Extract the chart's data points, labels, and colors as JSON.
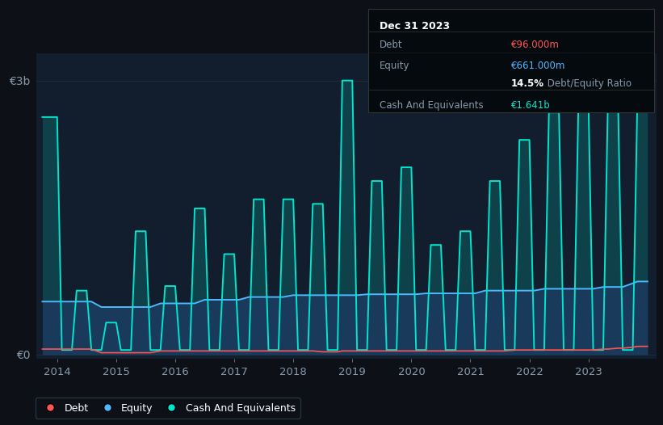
{
  "background_color": "#0d1117",
  "plot_bg_color": "#121d2e",
  "ylabel_3b": "€3b",
  "ylabel_0": "€0",
  "x_labels": [
    "2014",
    "2015",
    "2016",
    "2017",
    "2018",
    "2019",
    "2020",
    "2021",
    "2022",
    "2023"
  ],
  "legend": [
    {
      "label": "Debt",
      "color": "#ff5555"
    },
    {
      "label": "Equity",
      "color": "#4db8ff"
    },
    {
      "label": "Cash And Equivalents",
      "color": "#00e5cc"
    }
  ],
  "debt_color": "#ff5555",
  "equity_color": "#4db8ff",
  "cash_color": "#00e5cc",
  "cash_fill_color": "#00e5cc",
  "equity_fill_color": "#1a3a5c",
  "grid_color": "#1e2d3d",
  "axis_label_color": "#8899aa",
  "tooltip_bg": "#050a0f",
  "tooltip_border": "#333333",
  "debt_color_tooltip": "#ff5555",
  "equity_color_tooltip": "#4db8ff",
  "cash_color_tooltip": "#00e5cc",
  "years": [
    2013.75,
    2014.0,
    2014.08,
    2014.25,
    2014.33,
    2014.5,
    2014.58,
    2014.75,
    2014.83,
    2015.0,
    2015.08,
    2015.25,
    2015.33,
    2015.5,
    2015.58,
    2015.75,
    2015.83,
    2016.0,
    2016.08,
    2016.25,
    2016.33,
    2016.5,
    2016.58,
    2016.75,
    2016.83,
    2017.0,
    2017.08,
    2017.25,
    2017.33,
    2017.5,
    2017.58,
    2017.75,
    2017.83,
    2018.0,
    2018.08,
    2018.25,
    2018.33,
    2018.5,
    2018.58,
    2018.75,
    2018.83,
    2019.0,
    2019.08,
    2019.25,
    2019.33,
    2019.5,
    2019.58,
    2019.75,
    2019.83,
    2020.0,
    2020.08,
    2020.25,
    2020.33,
    2020.5,
    2020.58,
    2020.75,
    2020.83,
    2021.0,
    2021.08,
    2021.25,
    2021.33,
    2021.5,
    2021.58,
    2021.75,
    2021.83,
    2022.0,
    2022.08,
    2022.25,
    2022.33,
    2022.5,
    2022.58,
    2022.75,
    2022.83,
    2023.0,
    2023.08,
    2023.25,
    2023.33,
    2023.5,
    2023.58,
    2023.75,
    2023.83,
    2024.0
  ],
  "cash": [
    2.6,
    2.6,
    0.05,
    0.05,
    0.7,
    0.7,
    0.05,
    0.05,
    0.35,
    0.35,
    0.05,
    0.05,
    1.35,
    1.35,
    0.05,
    0.05,
    0.75,
    0.75,
    0.05,
    0.05,
    1.6,
    1.6,
    0.05,
    0.05,
    1.1,
    1.1,
    0.05,
    0.05,
    1.7,
    1.7,
    0.05,
    0.05,
    1.7,
    1.7,
    0.05,
    0.05,
    1.65,
    1.65,
    0.05,
    0.05,
    3.0,
    3.0,
    0.05,
    0.05,
    1.9,
    1.9,
    0.05,
    0.05,
    2.05,
    2.05,
    0.05,
    0.05,
    1.2,
    1.2,
    0.05,
    0.05,
    1.35,
    1.35,
    0.05,
    0.05,
    1.9,
    1.9,
    0.05,
    0.05,
    2.35,
    2.35,
    0.05,
    0.05,
    2.65,
    2.65,
    0.05,
    0.05,
    2.75,
    2.75,
    0.05,
    0.05,
    2.8,
    2.8,
    0.05,
    0.05,
    2.85,
    2.85
  ],
  "equity": [
    0.58,
    0.58,
    0.58,
    0.58,
    0.58,
    0.58,
    0.58,
    0.52,
    0.52,
    0.52,
    0.52,
    0.52,
    0.52,
    0.52,
    0.52,
    0.56,
    0.56,
    0.56,
    0.56,
    0.56,
    0.56,
    0.6,
    0.6,
    0.6,
    0.6,
    0.6,
    0.6,
    0.63,
    0.63,
    0.63,
    0.63,
    0.63,
    0.63,
    0.65,
    0.65,
    0.65,
    0.65,
    0.65,
    0.65,
    0.65,
    0.65,
    0.65,
    0.65,
    0.66,
    0.66,
    0.66,
    0.66,
    0.66,
    0.66,
    0.66,
    0.66,
    0.67,
    0.67,
    0.67,
    0.67,
    0.67,
    0.67,
    0.67,
    0.67,
    0.7,
    0.7,
    0.7,
    0.7,
    0.7,
    0.7,
    0.7,
    0.7,
    0.72,
    0.72,
    0.72,
    0.72,
    0.72,
    0.72,
    0.72,
    0.72,
    0.74,
    0.74,
    0.74,
    0.74,
    0.78,
    0.8,
    0.8
  ],
  "debt": [
    0.06,
    0.06,
    0.06,
    0.06,
    0.06,
    0.06,
    0.06,
    0.02,
    0.02,
    0.02,
    0.02,
    0.02,
    0.02,
    0.02,
    0.02,
    0.04,
    0.04,
    0.04,
    0.04,
    0.04,
    0.04,
    0.04,
    0.04,
    0.04,
    0.04,
    0.04,
    0.04,
    0.04,
    0.04,
    0.04,
    0.04,
    0.04,
    0.04,
    0.04,
    0.04,
    0.04,
    0.04,
    0.03,
    0.03,
    0.03,
    0.04,
    0.04,
    0.04,
    0.04,
    0.04,
    0.04,
    0.04,
    0.04,
    0.04,
    0.04,
    0.04,
    0.04,
    0.04,
    0.04,
    0.04,
    0.04,
    0.04,
    0.04,
    0.04,
    0.04,
    0.04,
    0.04,
    0.04,
    0.05,
    0.05,
    0.05,
    0.05,
    0.05,
    0.05,
    0.05,
    0.05,
    0.05,
    0.05,
    0.05,
    0.05,
    0.06,
    0.06,
    0.07,
    0.07,
    0.08,
    0.09,
    0.09
  ],
  "ylim": [
    -0.05,
    3.3
  ],
  "xlim": [
    2013.65,
    2024.15
  ],
  "tooltip": {
    "date": "Dec 31 2023",
    "debt_label": "Debt",
    "debt_value": "€96.000m",
    "equity_label": "Equity",
    "equity_value": "€661.000m",
    "ratio_bold": "14.5%",
    "ratio_rest": " Debt/Equity Ratio",
    "cash_label": "Cash And Equivalents",
    "cash_value": "€1.641b"
  }
}
